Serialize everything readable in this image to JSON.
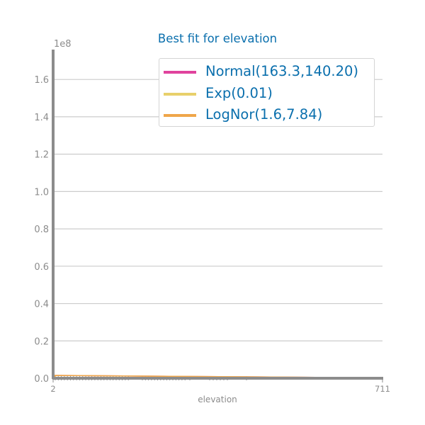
{
  "chart_data": {
    "type": "line",
    "title": "Best fit for elevation",
    "xlabel": "elevation",
    "ylabel": "",
    "y_multiplier": "1e8",
    "ylim": [
      0,
      1.76
    ],
    "yticks": [
      "0.0",
      "0.2",
      "0.4",
      "0.6",
      "0.8",
      "1.0",
      "1.2",
      "1.4",
      "1.6"
    ],
    "xticks": [
      "2",
      "711"
    ],
    "xlim": [
      2,
      711
    ],
    "series": [
      {
        "name": "Normal(163.3,140.20)",
        "color": "#e0439d",
        "values": []
      },
      {
        "name": "Exp(0.01)",
        "color": "#e8d06b",
        "values": []
      },
      {
        "name": "LogNor(1.6,7.84)",
        "color": "#efa64a",
        "values": []
      }
    ],
    "grid": "horizontal",
    "legend_position": "top-right"
  },
  "colors": {
    "text": "#0a6fad",
    "axis": "#8c8c8c",
    "grid": "#cccccc",
    "tick_text": "#8c8c8c"
  }
}
